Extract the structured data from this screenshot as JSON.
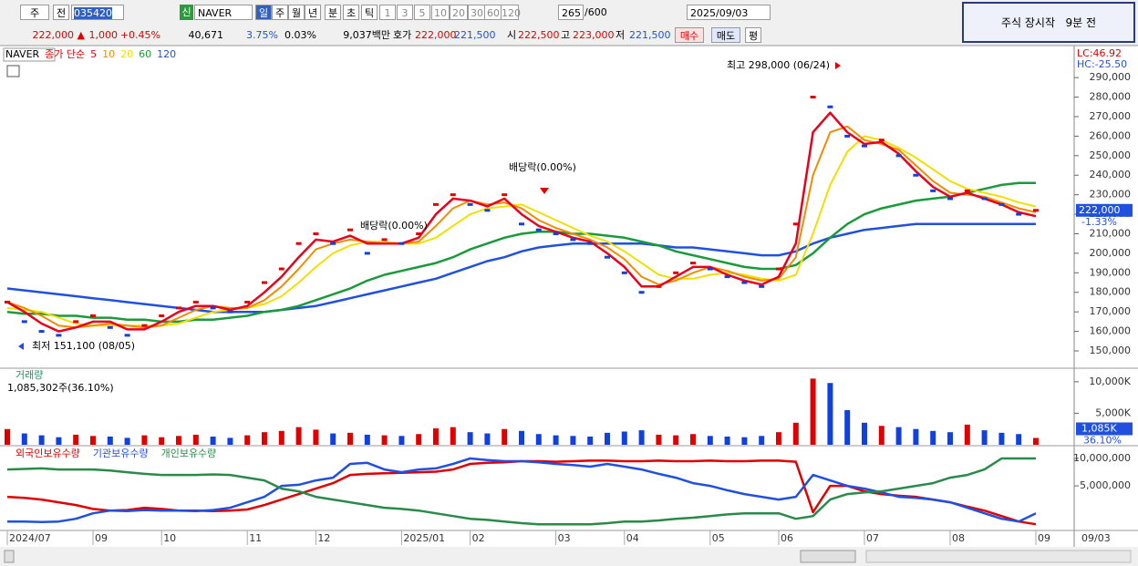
{
  "toolbar": {
    "period_type": "주",
    "prev": "전",
    "code": "035420",
    "credit": "신",
    "name": "NAVER",
    "periods": [
      "일",
      "주",
      "월",
      "년",
      "분",
      "초",
      "틱"
    ],
    "intervals": [
      "1",
      "3",
      "5",
      "10",
      "20",
      "30",
      "60",
      "120"
    ],
    "count": "265",
    "max": "/600",
    "date": "2025/09/03"
  },
  "quote": {
    "price": "222,000 ▲",
    "change": "1,000",
    "change_pct": "+0.45%",
    "volume": "40,671",
    "turnover": "3.75%",
    "ratio": "0.03%",
    "amount": "9,037백만",
    "ask_label": "호가",
    "ask": "222,000",
    "bid": "221,500",
    "open_label": "시",
    "open": "222,500",
    "high_label": "고",
    "high": "223,000",
    "low_label": "저",
    "low": "221,500",
    "buttons": [
      "매수",
      "매도",
      "평"
    ]
  },
  "notice": "주식 장시작   9분 전",
  "chart_data": [
    {
      "type": "line",
      "ma_label": "종가 단순",
      "ylim": [
        141600,
        305000
      ],
      "yticks": [
        {
          "value": 150000,
          "label": "150,000"
        },
        {
          "value": 160000,
          "label": "160,000"
        },
        {
          "value": 170000,
          "label": "170,000"
        },
        {
          "value": 180000,
          "label": "180,000"
        },
        {
          "value": 190000,
          "label": "190,000"
        },
        {
          "value": 200000,
          "label": "200,000"
        },
        {
          "value": 210000,
          "label": "210,000"
        },
        {
          "value": 220000,
          "label": "220,000"
        },
        {
          "value": 230000,
          "label": "230,000"
        },
        {
          "value": 240000,
          "label": "240,000"
        },
        {
          "value": 250000,
          "label": "250,000"
        },
        {
          "value": 260000,
          "label": "260,000"
        },
        {
          "value": 270000,
          "label": "270,000"
        },
        {
          "value": 280000,
          "label": "280,000"
        },
        {
          "value": 290000,
          "label": "290,000"
        }
      ],
      "annotations": [
        "최고 298,000 (06/24)",
        "배당락(0.00%)",
        "배당락(0.00%)",
        "최저 151,100 (08/05)"
      ],
      "side_labels": [
        "LC:46.92",
        "HC:-25.50"
      ],
      "current": {
        "value": 222000,
        "label": "222,000"
      },
      "current_change": "-1.33%",
      "series": [
        {
          "name": "NAVER",
          "color": "#e00000",
          "values": [
            175000,
            165000,
            160000,
            158000,
            165000,
            168000,
            162000,
            158000,
            163000,
            168000,
            172000,
            175000,
            172000,
            170000,
            175000,
            185000,
            192000,
            205000,
            210000,
            205000,
            212000,
            200000,
            207000,
            205000,
            210000,
            225000,
            230000,
            225000,
            222000,
            230000,
            215000,
            212000,
            210000,
            207000,
            205000,
            198000,
            190000,
            180000,
            183000,
            190000,
            195000,
            192000,
            188000,
            185000,
            183000,
            192000,
            215000,
            280000,
            275000,
            260000,
            255000,
            258000,
            250000,
            240000,
            232000,
            228000,
            232000,
            228000,
            225000,
            220000,
            222000
          ]
        },
        {
          "name": "5",
          "color": "#e8001c",
          "values": [
            175000,
            170000,
            164000,
            160000,
            162000,
            165000,
            165000,
            161000,
            161000,
            165000,
            170000,
            173000,
            173000,
            171000,
            173000,
            180000,
            188000,
            198000,
            207000,
            206000,
            209000,
            205000,
            205000,
            205000,
            208000,
            220000,
            228000,
            227000,
            224000,
            228000,
            220000,
            214000,
            211000,
            208000,
            206000,
            200000,
            193000,
            183000,
            183000,
            188000,
            193000,
            193000,
            189000,
            186000,
            184000,
            188000,
            205000,
            262000,
            272000,
            262000,
            256000,
            257000,
            251000,
            242000,
            234000,
            229000,
            231000,
            228000,
            225000,
            221000,
            219000
          ]
        },
        {
          "name": "10",
          "color": "#f08c00",
          "values": [
            175000,
            172000,
            168000,
            163000,
            162000,
            163000,
            164000,
            163000,
            162000,
            163000,
            167000,
            171000,
            173000,
            172000,
            172000,
            176000,
            183000,
            192000,
            202000,
            205000,
            207000,
            206000,
            205000,
            205000,
            206000,
            214000,
            223000,
            227000,
            225000,
            226000,
            223000,
            217000,
            213000,
            210000,
            207000,
            203000,
            197000,
            188000,
            184000,
            186000,
            190000,
            193000,
            191000,
            188000,
            186000,
            187000,
            198000,
            240000,
            262000,
            265000,
            258000,
            256000,
            253000,
            245000,
            237000,
            231000,
            230000,
            229000,
            226000,
            223000,
            221000
          ]
        },
        {
          "name": "20",
          "color": "#f0e000",
          "values": [
            172000,
            171000,
            170000,
            167000,
            164000,
            163000,
            163000,
            163000,
            163000,
            163000,
            164000,
            167000,
            170000,
            171000,
            172000,
            174000,
            178000,
            185000,
            193000,
            200000,
            204000,
            206000,
            206000,
            205000,
            205000,
            208000,
            214000,
            220000,
            223000,
            224000,
            225000,
            221000,
            217000,
            213000,
            209000,
            206000,
            201000,
            195000,
            189000,
            187000,
            187000,
            189000,
            190000,
            189000,
            187000,
            186000,
            189000,
            210000,
            235000,
            252000,
            260000,
            258000,
            254000,
            249000,
            243000,
            237000,
            233000,
            231000,
            229000,
            226000,
            224000
          ]
        },
        {
          "name": "60",
          "color": "#1a9a3a",
          "values": [
            170000,
            169000,
            169000,
            168000,
            168000,
            167000,
            167000,
            166000,
            166000,
            165000,
            165000,
            166000,
            166000,
            167000,
            168000,
            170000,
            171000,
            173000,
            176000,
            179000,
            182000,
            186000,
            189000,
            191000,
            193000,
            195000,
            198000,
            202000,
            205000,
            208000,
            210000,
            211000,
            211000,
            210000,
            210000,
            209000,
            208000,
            206000,
            204000,
            201000,
            199000,
            197000,
            195000,
            193000,
            192000,
            192000,
            194000,
            200000,
            208000,
            215000,
            220000,
            223000,
            225000,
            227000,
            228000,
            229000,
            231000,
            233000,
            235000,
            236000,
            236000
          ]
        },
        {
          "name": "120",
          "color": "#2050e0",
          "values": [
            182000,
            181000,
            180000,
            179000,
            178000,
            177000,
            176000,
            175000,
            174000,
            173000,
            172000,
            171000,
            170000,
            170000,
            170000,
            170000,
            171000,
            172000,
            173000,
            175000,
            177000,
            179000,
            181000,
            183000,
            185000,
            187000,
            190000,
            193000,
            196000,
            198000,
            201000,
            203000,
            204000,
            205000,
            205000,
            205000,
            205000,
            205000,
            204000,
            203000,
            203000,
            202000,
            201000,
            200000,
            199000,
            199000,
            201000,
            205000,
            208000,
            210000,
            212000,
            213000,
            214000,
            215000,
            215000,
            215000,
            215000,
            215000,
            215000,
            215000,
            215000
          ]
        }
      ]
    },
    {
      "type": "bar",
      "title": "거래량",
      "summary": "1,085,302주(36.10%)",
      "up_color": "#e00000",
      "down_color": "#1040e0",
      "ylim": [
        0,
        12000000
      ],
      "yticks": [
        {
          "value": 5000000,
          "label": "5,000K"
        },
        {
          "value": 10000000,
          "label": "10,000K"
        }
      ],
      "current": {
        "value": 1085302,
        "label": "1,085K"
      },
      "current_pct": "36.10%",
      "values": [
        2500000,
        1800000,
        1500000,
        1200000,
        1600000,
        1400000,
        1300000,
        1100000,
        1500000,
        1200000,
        1400000,
        1600000,
        1300000,
        1100000,
        1500000,
        2000000,
        2200000,
        2800000,
        2400000,
        1800000,
        1900000,
        1600000,
        1500000,
        1400000,
        1700000,
        2600000,
        2800000,
        2000000,
        1800000,
        2500000,
        2200000,
        1700000,
        1500000,
        1400000,
        1300000,
        1900000,
        2100000,
        2300000,
        1600000,
        1500000,
        1700000,
        1400000,
        1300000,
        1200000,
        1400000,
        2000000,
        3500000,
        10500000,
        9800000,
        5500000,
        3500000,
        3000000,
        2800000,
        2500000,
        2200000,
        2000000,
        3200000,
        2300000,
        1900000,
        1700000,
        1085302
      ]
    },
    {
      "type": "line",
      "ylim": [
        -2800000,
        12000000
      ],
      "yticks": [
        {
          "value": 5000000,
          "label": "5,000,000"
        },
        {
          "value": 10000000,
          "label": "10,000,000"
        }
      ],
      "categories": [
        "2024/07",
        null,
        null,
        null,
        null,
        "09",
        null,
        null,
        null,
        "10",
        null,
        null,
        null,
        null,
        "11",
        null,
        null,
        null,
        "12",
        null,
        null,
        null,
        null,
        "2025/01",
        null,
        null,
        null,
        "02",
        null,
        null,
        null,
        null,
        "03",
        null,
        null,
        null,
        "04",
        null,
        null,
        null,
        null,
        "05",
        null,
        null,
        null,
        "06",
        null,
        null,
        null,
        null,
        "07",
        null,
        null,
        null,
        null,
        "08",
        null,
        null,
        null,
        null,
        "09"
      ],
      "end_label": "09/03",
      "series": [
        {
          "name": "외국인보유수량",
          "color": "#e00000",
          "values": [
            3000000,
            2800000,
            2500000,
            2000000,
            1500000,
            800000,
            500000,
            600000,
            1000000,
            800000,
            500000,
            500000,
            400000,
            500000,
            700000,
            1500000,
            2500000,
            3500000,
            4500000,
            5500000,
            7000000,
            7200000,
            7300000,
            7400000,
            7500000,
            7600000,
            8000000,
            9000000,
            9200000,
            9300000,
            9500000,
            9500000,
            9400000,
            9500000,
            9600000,
            9600000,
            9500000,
            9500000,
            9600000,
            9500000,
            9500000,
            9600000,
            9500000,
            9500000,
            9600000,
            9600000,
            9400000,
            200000,
            5000000,
            5000000,
            4000000,
            3500000,
            3200000,
            3000000,
            2500000,
            2000000,
            1200000,
            500000,
            -500000,
            -1500000,
            -2000000
          ]
        },
        {
          "name": "기관보유수량",
          "color": "#2050e0",
          "values": [
            -1500000,
            -1500000,
            -1600000,
            -1500000,
            -1000000,
            0,
            500000,
            400000,
            600000,
            500000,
            500000,
            400000,
            600000,
            1000000,
            2000000,
            3000000,
            5000000,
            5200000,
            6000000,
            6500000,
            9000000,
            9200000,
            8000000,
            7500000,
            8000000,
            8200000,
            9000000,
            10000000,
            9700000,
            9500000,
            9500000,
            9300000,
            9000000,
            8800000,
            8500000,
            9000000,
            8500000,
            8000000,
            7200000,
            6500000,
            5500000,
            5000000,
            4200000,
            3500000,
            3000000,
            2500000,
            3000000,
            7000000,
            6000000,
            5000000,
            4500000,
            3800000,
            3000000,
            2800000,
            2500000,
            2000000,
            1000000,
            0,
            -1000000,
            -1500000,
            0
          ]
        },
        {
          "name": "개인보유수량",
          "color": "#2a8a4a",
          "values": [
            8000000,
            8100000,
            8200000,
            8000000,
            8000000,
            8000000,
            7800000,
            7500000,
            7200000,
            7000000,
            7000000,
            7000000,
            7100000,
            7000000,
            6500000,
            6000000,
            4500000,
            4000000,
            3000000,
            2500000,
            2000000,
            1500000,
            1000000,
            800000,
            500000,
            0,
            -500000,
            -1000000,
            -1200000,
            -1500000,
            -1800000,
            -2000000,
            -2000000,
            -2000000,
            -2000000,
            -1800000,
            -1500000,
            -1500000,
            -1300000,
            -1000000,
            -800000,
            -500000,
            -200000,
            0,
            0,
            0,
            -1000000,
            -500000,
            2500000,
            3500000,
            3800000,
            4000000,
            4500000,
            5000000,
            5500000,
            6500000,
            7000000,
            8000000,
            10000000,
            10000000,
            10000000
          ]
        }
      ]
    }
  ]
}
